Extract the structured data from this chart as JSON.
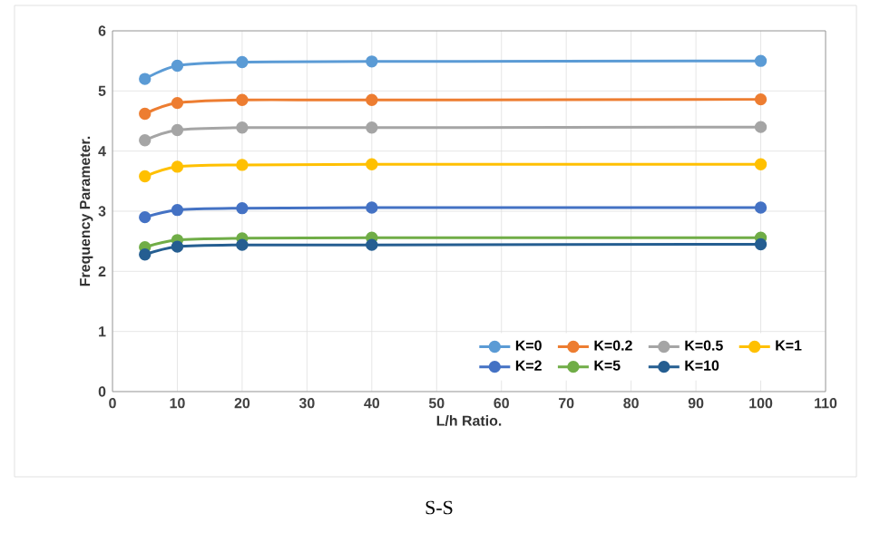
{
  "chart_data": {
    "type": "line",
    "xlabel": "L/h Ratio.",
    "ylabel": "Frequency Parameter.",
    "annotations": [
      "S-S"
    ],
    "x": [
      5,
      10,
      20,
      40,
      100
    ],
    "series": [
      {
        "name": "K=0",
        "color": "#5b9bd5",
        "values": [
          5.2,
          5.42,
          5.48,
          5.49,
          5.5
        ]
      },
      {
        "name": "K=0.2",
        "color": "#ed7d31",
        "values": [
          4.62,
          4.8,
          4.85,
          4.85,
          4.86
        ]
      },
      {
        "name": "K=0.5",
        "color": "#a5a5a5",
        "values": [
          4.18,
          4.35,
          4.39,
          4.39,
          4.4
        ]
      },
      {
        "name": "K=1",
        "color": "#ffc000",
        "values": [
          3.58,
          3.74,
          3.77,
          3.78,
          3.78
        ]
      },
      {
        "name": "K=2",
        "color": "#4472c4",
        "values": [
          2.9,
          3.02,
          3.05,
          3.06,
          3.06
        ]
      },
      {
        "name": "K=5",
        "color": "#70ad47",
        "values": [
          2.4,
          2.52,
          2.55,
          2.56,
          2.56
        ]
      },
      {
        "name": "K=10",
        "color": "#255e91",
        "values": [
          2.28,
          2.41,
          2.44,
          2.44,
          2.45
        ]
      }
    ],
    "xlim": [
      0,
      110
    ],
    "xticks": [
      0,
      10,
      20,
      30,
      40,
      50,
      60,
      70,
      80,
      90,
      100,
      110
    ],
    "ylim": [
      0,
      6
    ],
    "yticks": [
      0,
      1,
      2,
      3,
      4,
      5,
      6
    ],
    "grid": true,
    "legend": "bottom right",
    "marker": "circle",
    "line_style": "solid"
  }
}
